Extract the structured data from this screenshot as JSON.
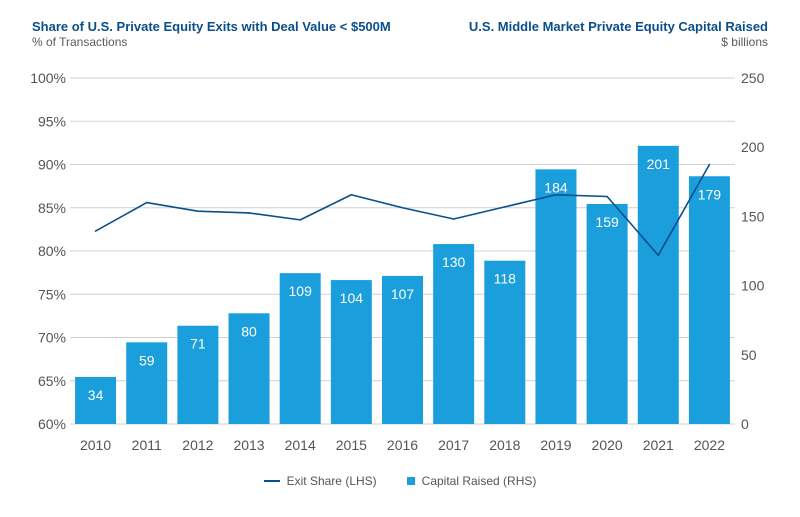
{
  "header": {
    "left_title": "Share of U.S. Private Equity Exits with Deal Value < $500M",
    "left_subtitle": "% of Transactions",
    "right_title": "U.S. Middle Market Private Equity Capital Raised",
    "right_subtitle": "$ billions"
  },
  "legend": {
    "line_label": "Exit Share (LHS)",
    "bar_label": "Capital Raised (RHS)"
  },
  "colors": {
    "line": "#0b4f8a",
    "bar": "#1a9fdc",
    "grid": "#d0d0d0",
    "axis_text": "#555555"
  },
  "chart_data": {
    "type": "bar",
    "categories": [
      "2010",
      "2011",
      "2012",
      "2013",
      "2014",
      "2015",
      "2016",
      "2017",
      "2018",
      "2019",
      "2020",
      "2021",
      "2022"
    ],
    "series": [
      {
        "name": "Exit Share (LHS)",
        "type": "line",
        "axis": "left",
        "values": [
          82.3,
          85.6,
          84.6,
          84.4,
          83.6,
          86.5,
          85.0,
          83.7,
          85.1,
          86.5,
          86.3,
          79.5,
          90.0
        ]
      },
      {
        "name": "Capital Raised (RHS)",
        "type": "bar",
        "axis": "right",
        "values": [
          34,
          59,
          71,
          80,
          109,
          104,
          107,
          130,
          118,
          184,
          159,
          201,
          179
        ]
      }
    ],
    "left_axis": {
      "ylim": [
        60,
        100
      ],
      "ticks": [
        60,
        65,
        70,
        75,
        80,
        85,
        90,
        95,
        100
      ],
      "tick_labels": [
        "60%",
        "65%",
        "70%",
        "75%",
        "80%",
        "85%",
        "90%",
        "95%",
        "100%"
      ]
    },
    "right_axis": {
      "ylim": [
        0,
        250
      ],
      "ticks": [
        0,
        50,
        100,
        150,
        200,
        250
      ],
      "tick_labels": [
        "0",
        "50",
        "100",
        "150",
        "200",
        "250"
      ]
    },
    "grid": true,
    "legend_position": "bottom-center"
  }
}
